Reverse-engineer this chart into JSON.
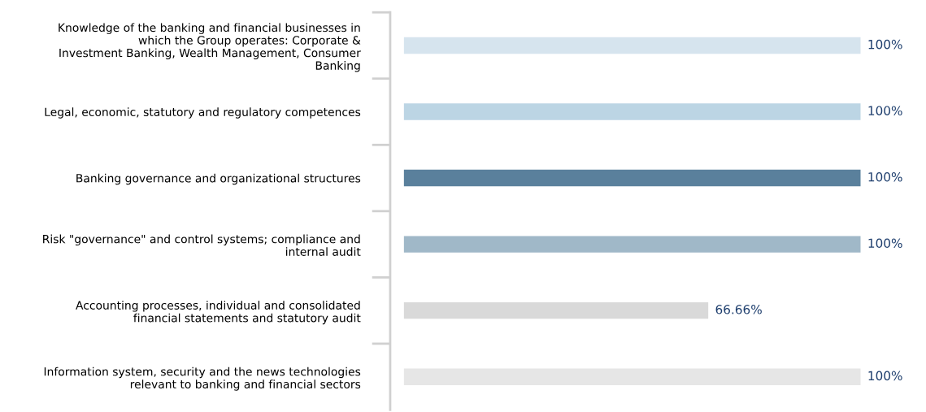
{
  "chart_data": {
    "type": "bar",
    "orientation": "horizontal",
    "categories": [
      "Knowledge of the banking and financial businesses in\nwhich the Group operates: Corporate &\nInvestment Banking, Wealth Management, Consumer\nBanking",
      "Legal, economic, statutory and regulatory competences",
      "Banking governance and organizational structures",
      "Risk \"governance\" and control systems; compliance and\ninternal audit",
      "Accounting processes, individual and consolidated\nfinancial statements and statutory audit",
      "Information system, security and the news technologies\nrelevant to banking and financial sectors"
    ],
    "values": [
      100,
      100,
      100,
      100,
      66.66,
      100
    ],
    "value_labels": [
      "100%",
      "100%",
      "100%",
      "100%",
      "66.66%",
      "100%"
    ],
    "colors": [
      "#d6e4ee",
      "#bcd5e4",
      "#5a809c",
      "#a0b8c8",
      "#d9d9d9",
      "#e6e6e6"
    ],
    "grid": false,
    "legend": false
  }
}
